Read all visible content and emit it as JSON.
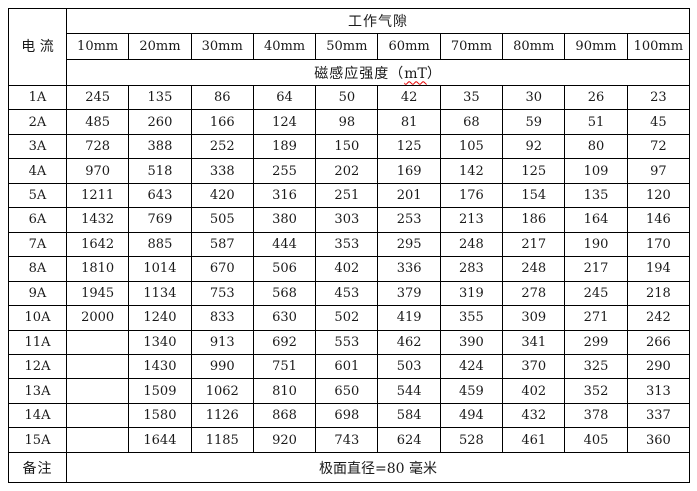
{
  "colors": {
    "border": "#000000",
    "text": "#1a1a1a",
    "background": "#ffffff",
    "spellcheck_underline": "#e60000"
  },
  "table": {
    "current_label": "电\n流",
    "air_gap_label": "工作气隙",
    "gap_columns": [
      "10mm",
      "20mm",
      "30mm",
      "40mm",
      "50mm",
      "60mm",
      "70mm",
      "80mm",
      "90mm",
      "100mm"
    ],
    "flux_label_prefix": "磁感应强度（",
    "flux_unit": "mT",
    "flux_label_suffix": "）",
    "rows": [
      {
        "current": "1A",
        "values": [
          "245",
          "135",
          "86",
          "64",
          "50",
          "42",
          "35",
          "30",
          "26",
          "23"
        ]
      },
      {
        "current": "2A",
        "values": [
          "485",
          "260",
          "166",
          "124",
          "98",
          "81",
          "68",
          "59",
          "51",
          "45"
        ]
      },
      {
        "current": "3A",
        "values": [
          "728",
          "388",
          "252",
          "189",
          "150",
          "125",
          "105",
          "92",
          "80",
          "72"
        ]
      },
      {
        "current": "4A",
        "values": [
          "970",
          "518",
          "338",
          "255",
          "202",
          "169",
          "142",
          "125",
          "109",
          "97"
        ]
      },
      {
        "current": "5A",
        "values": [
          "1211",
          "643",
          "420",
          "316",
          "251",
          "201",
          "176",
          "154",
          "135",
          "120"
        ]
      },
      {
        "current": "6A",
        "values": [
          "1432",
          "769",
          "505",
          "380",
          "303",
          "253",
          "213",
          "186",
          "164",
          "146"
        ]
      },
      {
        "current": "7A",
        "values": [
          "1642",
          "885",
          "587",
          "444",
          "353",
          "295",
          "248",
          "217",
          "190",
          "170"
        ]
      },
      {
        "current": "8A",
        "values": [
          "1810",
          "1014",
          "670",
          "506",
          "402",
          "336",
          "283",
          "248",
          "217",
          "194"
        ]
      },
      {
        "current": "9A",
        "values": [
          "1945",
          "1134",
          "753",
          "568",
          "453",
          "379",
          "319",
          "278",
          "245",
          "218"
        ]
      },
      {
        "current": "10A",
        "values": [
          "2000",
          "1240",
          "833",
          "630",
          "502",
          "419",
          "355",
          "309",
          "271",
          "242"
        ]
      },
      {
        "current": "11A",
        "values": [
          "",
          "1340",
          "913",
          "692",
          "553",
          "462",
          "390",
          "341",
          "299",
          "266"
        ]
      },
      {
        "current": "12A",
        "values": [
          "",
          "1430",
          "990",
          "751",
          "601",
          "503",
          "424",
          "370",
          "325",
          "290"
        ]
      },
      {
        "current": "13A",
        "values": [
          "",
          "1509",
          "1062",
          "810",
          "650",
          "544",
          "459",
          "402",
          "352",
          "313"
        ]
      },
      {
        "current": "14A",
        "values": [
          "",
          "1580",
          "1126",
          "868",
          "698",
          "584",
          "494",
          "432",
          "378",
          "337"
        ]
      },
      {
        "current": "15A",
        "values": [
          "",
          "1644",
          "1185",
          "920",
          "743",
          "624",
          "528",
          "461",
          "405",
          "360"
        ]
      }
    ],
    "remark_label": "备注",
    "remark_text": "极面直径=80 毫米"
  }
}
